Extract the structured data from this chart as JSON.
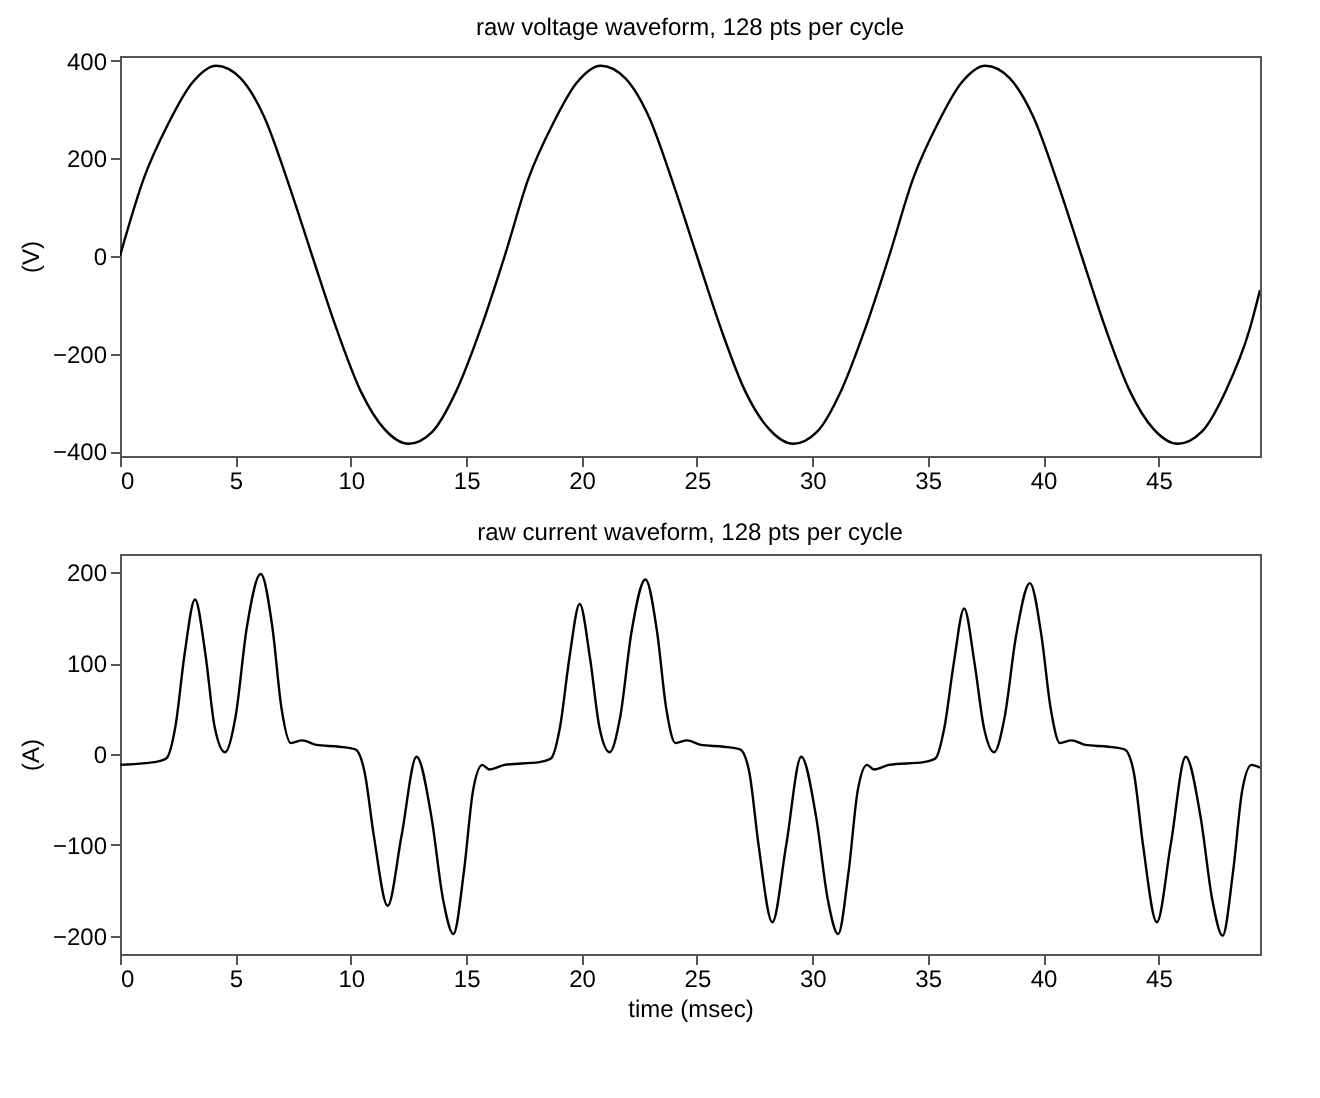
{
  "chart_data": [
    {
      "type": "line",
      "title": "raw voltage waveform, 128 pts per cycle",
      "ylabel": "(V)",
      "xlim": [
        0,
        49.4
      ],
      "xticks": [
        0,
        5,
        10,
        15,
        20,
        25,
        30,
        35,
        40,
        45
      ],
      "ylim": [
        -410,
        410
      ],
      "yticks": [
        -400,
        -200,
        0,
        200,
        400
      ],
      "grid": false,
      "x": [
        0,
        1.04,
        2.08,
        3.13,
        4.17,
        5.21,
        6.25,
        7.29,
        8.33,
        9.38,
        10.42,
        11.46,
        12.5,
        13.54,
        14.58,
        15.63,
        16.67,
        17.71,
        18.75,
        19.79,
        20.83,
        21.88,
        22.92,
        23.96,
        25,
        26.04,
        27.08,
        28.13,
        29.17,
        30.21,
        31.25,
        32.29,
        33.33,
        34.38,
        35.42,
        36.46,
        37.5,
        38.54,
        39.58,
        40.63,
        41.67,
        42.71,
        43.75,
        44.79,
        45.83,
        46.88,
        47.92,
        48.96,
        49.4
      ],
      "series": [
        {
          "color": "#000000",
          "values": [
            0,
            160,
            270,
            355,
            390,
            365,
            285,
            150,
            0,
            -149,
            -276,
            -355,
            -385,
            -360,
            -276,
            -149,
            0,
            160,
            270,
            355,
            390,
            365,
            285,
            150,
            0,
            -149,
            -276,
            -355,
            -385,
            -360,
            -276,
            -149,
            0,
            160,
            270,
            355,
            390,
            365,
            285,
            150,
            0,
            -149,
            -276,
            -355,
            -385,
            -360,
            -276,
            -149,
            -70
          ]
        }
      ]
    },
    {
      "type": "line",
      "title": "raw current waveform, 128 pts per cycle",
      "xlabel": "time (msec)",
      "ylabel": "(A)",
      "xlim": [
        0,
        49.4
      ],
      "xticks": [
        0,
        5,
        10,
        15,
        20,
        25,
        30,
        35,
        40,
        45
      ],
      "ylim": [
        -220,
        220
      ],
      "yticks": [
        -200,
        -100,
        0,
        100,
        200
      ],
      "grid": false,
      "x": [
        0,
        1.5,
        2.0,
        2.4,
        2.8,
        3.25,
        3.7,
        4.1,
        4.55,
        5.0,
        5.5,
        6.1,
        6.6,
        7.0,
        7.4,
        7.9,
        8.5,
        9.5,
        10.2,
        10.6,
        11.0,
        11.6,
        12.2,
        12.85,
        13.5,
        14.0,
        14.45,
        14.9,
        15.3,
        15.7,
        16.0,
        16.67,
        18.17,
        18.67,
        19.07,
        19.47,
        19.92,
        20.37,
        20.77,
        21.22,
        21.67,
        22.17,
        22.77,
        23.27,
        23.67,
        24.07,
        24.57,
        25.17,
        26.17,
        26.87,
        27.27,
        27.67,
        28.27,
        28.87,
        29.52,
        30.17,
        30.67,
        31.12,
        31.57,
        31.97,
        32.37,
        32.67,
        33.33,
        34.83,
        35.33,
        35.73,
        36.13,
        36.58,
        37.03,
        37.43,
        37.88,
        38.33,
        38.83,
        39.43,
        39.93,
        40.33,
        40.73,
        41.23,
        41.83,
        42.83,
        43.53,
        43.93,
        44.33,
        44.93,
        45.53,
        46.18,
        46.83,
        47.33,
        47.78,
        48.23,
        48.63,
        49.03,
        49.4
      ],
      "series": [
        {
          "color": "#000000",
          "values": [
            -12,
            -9,
            -5,
            30,
            110,
            170,
            110,
            30,
            2,
            40,
            140,
            198,
            140,
            50,
            12,
            15,
            10,
            8,
            5,
            -20,
            -90,
            -167,
            -90,
            -3,
            -70,
            -160,
            -198,
            -130,
            -40,
            -12,
            -17,
            -12,
            -9,
            -5,
            30,
            105,
            165,
            105,
            30,
            2,
            40,
            135,
            192,
            135,
            50,
            12,
            15,
            10,
            8,
            5,
            -20,
            -100,
            -185,
            -100,
            -3,
            -70,
            -160,
            -198,
            -130,
            -40,
            -12,
            -17,
            -12,
            -9,
            -5,
            30,
            100,
            160,
            100,
            30,
            2,
            40,
            130,
            188,
            130,
            50,
            12,
            15,
            10,
            8,
            5,
            -20,
            -100,
            -185,
            -100,
            -3,
            -70,
            -160,
            -200,
            -130,
            -40,
            -12,
            -15
          ]
        }
      ]
    }
  ]
}
